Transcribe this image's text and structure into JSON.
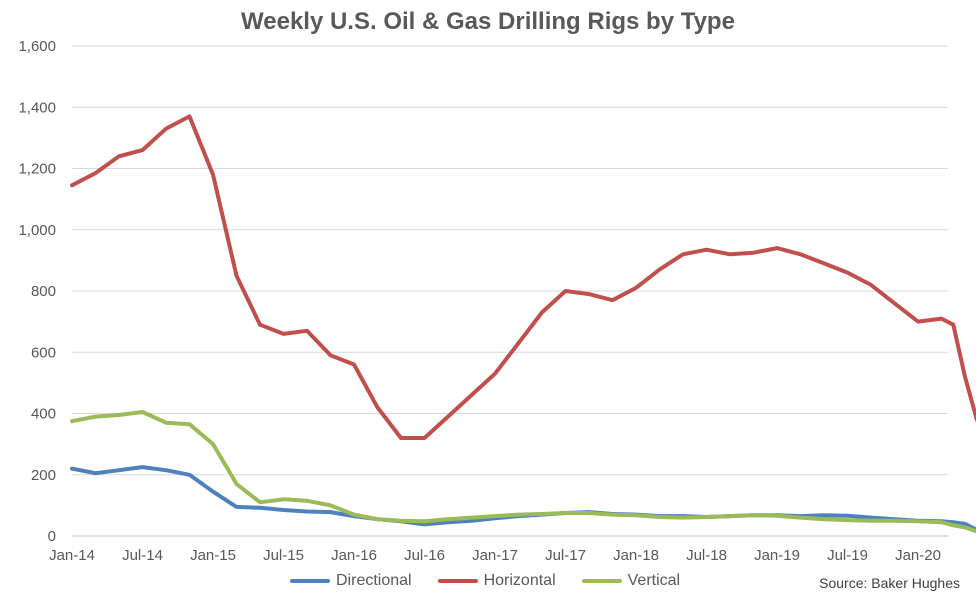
{
  "chart_data": {
    "type": "line",
    "title": "Weekly U.S. Oil & Gas Drilling Rigs by Type",
    "source": "Source: Baker Hughes",
    "ylim": [
      0,
      1600
    ],
    "yticks": [
      "0",
      "200",
      "400",
      "600",
      "800",
      "1,000",
      "1,200",
      "1,400",
      "1,600"
    ],
    "xticks": [
      "Jan-14",
      "Jul-14",
      "Jan-15",
      "Jul-15",
      "Jan-16",
      "Jul-16",
      "Jan-17",
      "Jul-17",
      "Jan-18",
      "Jul-18",
      "Jan-19",
      "Jul-19",
      "Jan-20"
    ],
    "grid": true,
    "legend_position": "bottom",
    "x_dates": [
      "2014-01",
      "2014-03",
      "2014-05",
      "2014-07",
      "2014-09",
      "2014-11",
      "2015-01",
      "2015-03",
      "2015-05",
      "2015-07",
      "2015-09",
      "2015-11",
      "2016-01",
      "2016-03",
      "2016-05",
      "2016-07",
      "2016-09",
      "2016-11",
      "2017-01",
      "2017-03",
      "2017-05",
      "2017-07",
      "2017-09",
      "2017-11",
      "2018-01",
      "2018-03",
      "2018-05",
      "2018-07",
      "2018-09",
      "2018-11",
      "2019-01",
      "2019-03",
      "2019-05",
      "2019-07",
      "2019-09",
      "2019-11",
      "2020-01",
      "2020-03",
      "2020-04",
      "2020-05",
      "2020-06"
    ],
    "series": [
      {
        "name": "Directional",
        "color": "#4F81BD",
        "values": [
          220,
          205,
          215,
          225,
          215,
          200,
          145,
          95,
          92,
          85,
          80,
          78,
          65,
          55,
          48,
          38,
          45,
          50,
          58,
          65,
          70,
          75,
          78,
          72,
          70,
          65,
          65,
          62,
          65,
          68,
          68,
          65,
          68,
          66,
          60,
          55,
          50,
          48,
          45,
          40,
          20
        ]
      },
      {
        "name": "Horizontal",
        "color": "#C0504D",
        "values": [
          1145,
          1185,
          1240,
          1260,
          1330,
          1370,
          1180,
          850,
          690,
          660,
          670,
          590,
          560,
          420,
          320,
          320,
          390,
          460,
          530,
          630,
          730,
          800,
          790,
          770,
          810,
          870,
          920,
          935,
          920,
          925,
          940,
          920,
          890,
          860,
          820,
          760,
          700,
          710,
          690,
          520,
          380
        ]
      },
      {
        "name": "Vertical",
        "color": "#9BBB59",
        "values": [
          375,
          390,
          395,
          405,
          370,
          365,
          300,
          170,
          110,
          120,
          115,
          100,
          70,
          55,
          50,
          48,
          55,
          60,
          65,
          70,
          72,
          75,
          75,
          70,
          68,
          62,
          60,
          62,
          65,
          68,
          66,
          60,
          55,
          52,
          50,
          50,
          48,
          45,
          35,
          28,
          15
        ]
      }
    ]
  }
}
